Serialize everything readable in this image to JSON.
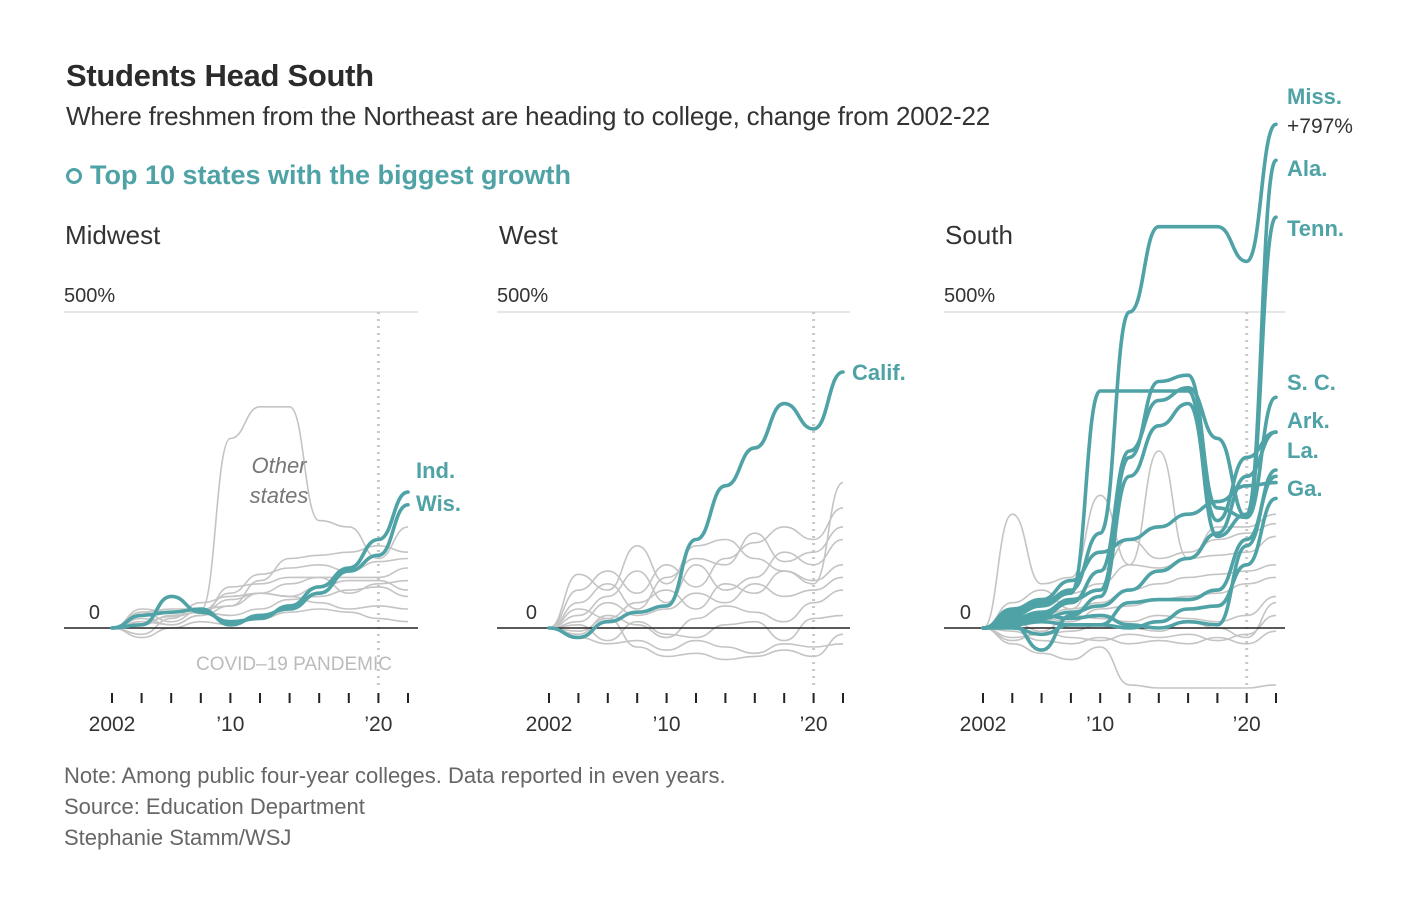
{
  "header": {
    "title": "Students Head South",
    "subtitle": "Where freshmen from the Northeast are heading to college, change from 2002-22"
  },
  "legend": {
    "label": "Top 10 states with the biggest growth"
  },
  "colors": {
    "highlight": "#4fa2a5",
    "other": "#c4c4c4",
    "baseline": "#222222",
    "grid": "#e6e6e6"
  },
  "footer": {
    "note": "Note: Among public four-year colleges. Data reported in even years.",
    "source": "Source: Education Department",
    "credit": "Stephanie Stamm/WSJ"
  },
  "chart_data": [
    {
      "type": "line",
      "title": "Midwest",
      "x": [
        2002,
        2004,
        2006,
        2008,
        2010,
        2012,
        2014,
        2016,
        2018,
        2020,
        2022
      ],
      "xticks": [
        "2002",
        "’10",
        "’20"
      ],
      "ylim": [
        -30,
        500
      ],
      "yticks": [
        {
          "value": 0,
          "label": "0"
        },
        {
          "value": 500,
          "label": "500%"
        }
      ],
      "annotation": {
        "line1": "Other",
        "line2": "states",
        "period_label": "COVID–19 PANDEMIC",
        "period_year": 2020
      },
      "highlight": [
        {
          "name": "Ind.",
          "values": [
            0,
            5,
            50,
            25,
            10,
            15,
            35,
            65,
            95,
            140,
            215
          ]
        },
        {
          "name": "Wis.",
          "values": [
            0,
            20,
            25,
            30,
            5,
            20,
            30,
            55,
            90,
            115,
            195
          ]
        }
      ],
      "others": [
        {
          "name": "Other states",
          "values": [
            0,
            25,
            10,
            28,
            300,
            350,
            350,
            170,
            160,
            110,
            160
          ]
        },
        {
          "name": "",
          "values": [
            0,
            25,
            30,
            30,
            35,
            75,
            110,
            115,
            120,
            130,
            120
          ]
        },
        {
          "name": "",
          "values": [
            0,
            30,
            25,
            28,
            55,
            85,
            95,
            100,
            90,
            105,
            110
          ]
        },
        {
          "name": "",
          "values": [
            0,
            10,
            5,
            20,
            65,
            70,
            80,
            80,
            80,
            80,
            95
          ]
        },
        {
          "name": "",
          "values": [
            0,
            -10,
            15,
            40,
            50,
            55,
            70,
            80,
            55,
            70,
            75
          ]
        },
        {
          "name": "",
          "values": [
            0,
            5,
            20,
            25,
            45,
            55,
            50,
            65,
            75,
            75,
            60
          ]
        },
        {
          "name": "",
          "values": [
            0,
            10,
            18,
            25,
            20,
            30,
            45,
            50,
            60,
            65,
            50
          ]
        },
        {
          "name": "",
          "values": [
            0,
            15,
            5,
            20,
            35,
            55,
            50,
            40,
            30,
            35,
            30
          ]
        },
        {
          "name": "",
          "values": [
            0,
            -15,
            0,
            10,
            5,
            15,
            25,
            30,
            25,
            15,
            10
          ]
        }
      ]
    },
    {
      "type": "line",
      "title": "West",
      "x": [
        2002,
        2004,
        2006,
        2008,
        2010,
        2012,
        2014,
        2016,
        2018,
        2020,
        2022
      ],
      "xticks": [
        "2002",
        "’10",
        "’20"
      ],
      "ylim": [
        -30,
        500
      ],
      "yticks": [
        {
          "value": 0,
          "label": "0"
        },
        {
          "value": 500,
          "label": "500%"
        }
      ],
      "annotation": {
        "period_year": 2020
      },
      "highlight": [
        {
          "name": "Calif.",
          "values": [
            0,
            -15,
            10,
            25,
            35,
            140,
            225,
            285,
            355,
            315,
            405
          ]
        }
      ],
      "others": [
        {
          "name": "",
          "values": [
            0,
            85,
            60,
            130,
            70,
            130,
            140,
            110,
            90,
            70,
            230
          ]
        },
        {
          "name": "",
          "values": [
            0,
            60,
            90,
            55,
            100,
            65,
            110,
            135,
            160,
            140,
            190
          ]
        },
        {
          "name": "",
          "values": [
            0,
            40,
            70,
            30,
            80,
            110,
            100,
            150,
            105,
            120,
            160
          ]
        },
        {
          "name": "",
          "values": [
            0,
            20,
            50,
            90,
            40,
            100,
            60,
            80,
            120,
            100,
            140
          ]
        },
        {
          "name": "",
          "values": [
            0,
            30,
            15,
            40,
            60,
            30,
            70,
            55,
            90,
            75,
            100
          ]
        },
        {
          "name": "",
          "values": [
            0,
            10,
            40,
            20,
            30,
            55,
            40,
            70,
            50,
            60,
            80
          ]
        },
        {
          "name": "",
          "values": [
            0,
            -10,
            20,
            5,
            -15,
            15,
            35,
            25,
            10,
            40,
            60
          ]
        },
        {
          "name": "",
          "values": [
            0,
            5,
            -20,
            10,
            -10,
            -15,
            5,
            10,
            -20,
            15,
            20
          ]
        },
        {
          "name": "",
          "values": [
            0,
            -15,
            -25,
            -20,
            -35,
            -20,
            -30,
            -40,
            -25,
            -30,
            -25
          ]
        },
        {
          "name": "",
          "values": [
            0,
            -5,
            15,
            -30,
            -45,
            -40,
            -50,
            -45,
            -35,
            -45,
            -10
          ]
        }
      ]
    },
    {
      "type": "line",
      "title": "South",
      "x": [
        2002,
        2004,
        2006,
        2008,
        2010,
        2012,
        2014,
        2016,
        2018,
        2020,
        2022
      ],
      "xticks": [
        "2002",
        "’10",
        "’20"
      ],
      "ylim": [
        -30,
        500
      ],
      "yticks": [
        {
          "value": 0,
          "label": "0"
        },
        {
          "value": 500,
          "label": "500%"
        }
      ],
      "annotation": {
        "period_year": 2020
      },
      "highlight": [
        {
          "name": "Miss.",
          "value_label": "+797%",
          "values": [
            0,
            25,
            40,
            60,
            150,
            500,
            635,
            635,
            635,
            580,
            797
          ]
        },
        {
          "name": "Ala.",
          "values": [
            0,
            20,
            35,
            55,
            375,
            375,
            375,
            375,
            145,
            180,
            740
          ]
        },
        {
          "name": "Tenn.",
          "values": [
            0,
            15,
            25,
            45,
            60,
            270,
            390,
            400,
            190,
            175,
            650
          ]
        },
        {
          "name": "S. C.",
          "values": [
            0,
            10,
            20,
            40,
            90,
            280,
            360,
            380,
            300,
            175,
            365
          ]
        },
        {
          "name": "Ark.",
          "values": [
            0,
            5,
            -35,
            20,
            50,
            240,
            320,
            355,
            170,
            270,
            310
          ]
        },
        {
          "name": "La.",
          "values": [
            0,
            10,
            15,
            25,
            35,
            60,
            90,
            110,
            150,
            240,
            310
          ]
        },
        {
          "name": "Ga.",
          "values": [
            0,
            30,
            45,
            75,
            120,
            140,
            160,
            180,
            200,
            225,
            230
          ]
        },
        {
          "name": "",
          "values": [
            0,
            15,
            20,
            15,
            20,
            5,
            0,
            10,
            5,
            130,
            250
          ]
        },
        {
          "name": "",
          "values": [
            0,
            5,
            10,
            5,
            5,
            40,
            45,
            45,
            60,
            140,
            240
          ]
        },
        {
          "name": "",
          "values": [
            0,
            0,
            -10,
            5,
            5,
            0,
            10,
            30,
            35,
            100,
            205
          ]
        }
      ],
      "others": [
        {
          "name": "",
          "values": [
            0,
            180,
            70,
            80,
            210,
            100,
            280,
            110,
            160,
            160,
            180
          ]
        },
        {
          "name": "",
          "values": [
            0,
            40,
            60,
            30,
            90,
            140,
            110,
            120,
            140,
            150,
            165
          ]
        },
        {
          "name": "",
          "values": [
            0,
            25,
            45,
            55,
            70,
            100,
            95,
            110,
            115,
            120,
            145
          ]
        },
        {
          "name": "",
          "values": [
            0,
            10,
            20,
            30,
            40,
            60,
            70,
            80,
            85,
            90,
            100
          ]
        },
        {
          "name": "",
          "values": [
            0,
            20,
            15,
            10,
            30,
            35,
            45,
            50,
            55,
            70,
            80
          ]
        },
        {
          "name": "",
          "values": [
            0,
            10,
            -5,
            20,
            15,
            10,
            20,
            15,
            10,
            20,
            50
          ]
        },
        {
          "name": "",
          "values": [
            0,
            -15,
            -10,
            -5,
            5,
            0,
            -5,
            10,
            0,
            -15,
            40
          ]
        },
        {
          "name": "",
          "values": [
            0,
            -20,
            -5,
            -15,
            -20,
            -10,
            -15,
            -10,
            -20,
            -10,
            20
          ]
        },
        {
          "name": "",
          "values": [
            0,
            -5,
            -20,
            -25,
            -15,
            -25,
            -20,
            -25,
            -15,
            -25,
            -5
          ]
        },
        {
          "name": "",
          "values": [
            0,
            -25,
            -40,
            -50,
            -30,
            -90,
            -95,
            -95,
            -95,
            -95,
            -90
          ]
        }
      ]
    }
  ]
}
